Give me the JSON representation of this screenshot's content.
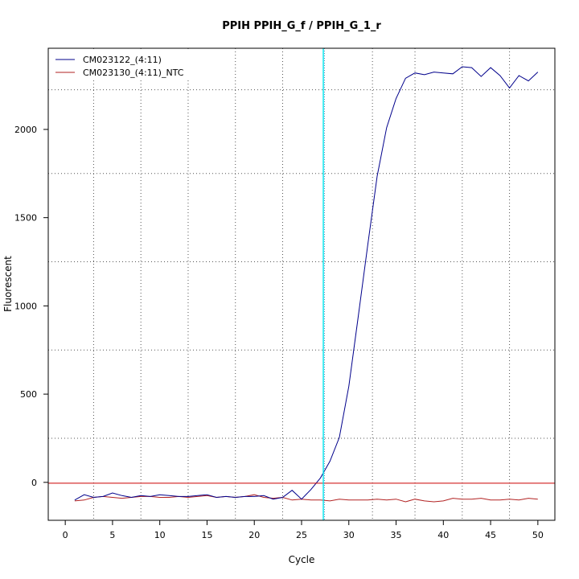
{
  "chart_data": {
    "type": "line",
    "title": "PPIH  PPIH_G_f / PPIH_G_1_r",
    "xlabel": "Cycle",
    "ylabel": "Fluorescent",
    "xlim": [
      -1.8,
      51.8
    ],
    "ylim": [
      -215,
      2460
    ],
    "x_ticks": [
      0,
      5,
      10,
      15,
      20,
      25,
      30,
      35,
      40,
      45,
      50
    ],
    "y_ticks": [
      0,
      500,
      1000,
      1500,
      2000
    ],
    "x_grid_dotted": [
      3,
      8,
      13,
      18,
      23,
      27.3,
      32.5,
      37,
      42,
      47
    ],
    "y_grid_dotted": [
      -215,
      250,
      750,
      1250,
      1750,
      2225
    ],
    "grid": true,
    "legend_position": "top-left",
    "threshold_line": {
      "value": -5,
      "color": "#cc0000"
    },
    "ct_line": {
      "value": 27.3,
      "color": "#00e5ee"
    },
    "series": [
      {
        "name": "CM023122_(4:11)",
        "color": "#00008b",
        "x": [
          1,
          2,
          3,
          4,
          5,
          6,
          7,
          8,
          9,
          10,
          11,
          12,
          13,
          14,
          15,
          16,
          17,
          18,
          19,
          20,
          21,
          22,
          23,
          24,
          25,
          26,
          27,
          28,
          29,
          30,
          31,
          32,
          33,
          34,
          35,
          36,
          37,
          38,
          39,
          40,
          41,
          42,
          43,
          44,
          45,
          46,
          47,
          48,
          49,
          50
        ],
        "values": [
          -100,
          -70,
          -85,
          -80,
          -60,
          -75,
          -85,
          -75,
          -80,
          -70,
          -75,
          -80,
          -80,
          -75,
          -70,
          -85,
          -80,
          -85,
          -80,
          -80,
          -75,
          -95,
          -85,
          -45,
          -95,
          -40,
          25,
          120,
          255,
          545,
          940,
          1345,
          1735,
          2010,
          2175,
          2290,
          2320,
          2310,
          2325,
          2320,
          2315,
          2355,
          2350,
          2300,
          2350,
          2305,
          2235,
          2305,
          2275,
          2325
        ]
      },
      {
        "name": "CM023130_(4:11)_NTC",
        "color": "#b22222",
        "x": [
          1,
          2,
          3,
          4,
          5,
          6,
          7,
          8,
          9,
          10,
          11,
          12,
          13,
          14,
          15,
          16,
          17,
          18,
          19,
          20,
          21,
          22,
          23,
          24,
          25,
          26,
          27,
          28,
          29,
          30,
          31,
          32,
          33,
          34,
          35,
          36,
          37,
          38,
          39,
          40,
          41,
          42,
          43,
          44,
          45,
          46,
          47,
          48,
          49,
          50
        ],
        "values": [
          -105,
          -100,
          -85,
          -80,
          -85,
          -90,
          -85,
          -80,
          -80,
          -85,
          -85,
          -80,
          -85,
          -80,
          -75,
          -85,
          -80,
          -85,
          -80,
          -70,
          -85,
          -90,
          -85,
          -100,
          -95,
          -100,
          -100,
          -105,
          -95,
          -100,
          -100,
          -100,
          -95,
          -100,
          -95,
          -110,
          -95,
          -105,
          -110,
          -105,
          -90,
          -95,
          -95,
          -90,
          -100,
          -100,
          -95,
          -100,
          -90,
          -95
        ]
      }
    ]
  }
}
